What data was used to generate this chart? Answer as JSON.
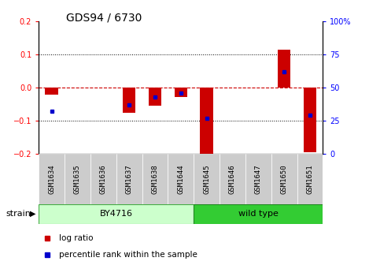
{
  "title": "GDS94 / 6730",
  "samples": [
    "GSM1634",
    "GSM1635",
    "GSM1636",
    "GSM1637",
    "GSM1638",
    "GSM1644",
    "GSM1645",
    "GSM1646",
    "GSM1647",
    "GSM1650",
    "GSM1651"
  ],
  "log_ratio": [
    -0.022,
    0.0,
    0.0,
    -0.077,
    -0.055,
    -0.03,
    -0.205,
    0.0,
    0.0,
    0.115,
    -0.195
  ],
  "percentile_rank": [
    32,
    0,
    0,
    37,
    43,
    46,
    27,
    0,
    0,
    62,
    29
  ],
  "by4716_indices": [
    0,
    1,
    2,
    3,
    4,
    5
  ],
  "wildtype_indices": [
    6,
    7,
    8,
    9,
    10
  ],
  "by4716_color": "#ccffcc",
  "wildtype_color": "#33cc33",
  "sample_box_color": "#cccccc",
  "ylim_left": [
    -0.2,
    0.2
  ],
  "ylim_right": [
    0,
    100
  ],
  "yticks_left": [
    -0.2,
    -0.1,
    0,
    0.1,
    0.2
  ],
  "yticks_right": [
    0,
    25,
    50,
    75,
    100
  ],
  "bar_color": "#cc0000",
  "dot_color": "#0000cc",
  "zero_line_color": "#cc0000",
  "grid_color": "#000000",
  "bg_color": "#ffffff",
  "title_fontsize": 10,
  "tick_fontsize": 7,
  "sample_fontsize": 6.5,
  "legend_fontsize": 7.5,
  "strain_fontsize": 8
}
